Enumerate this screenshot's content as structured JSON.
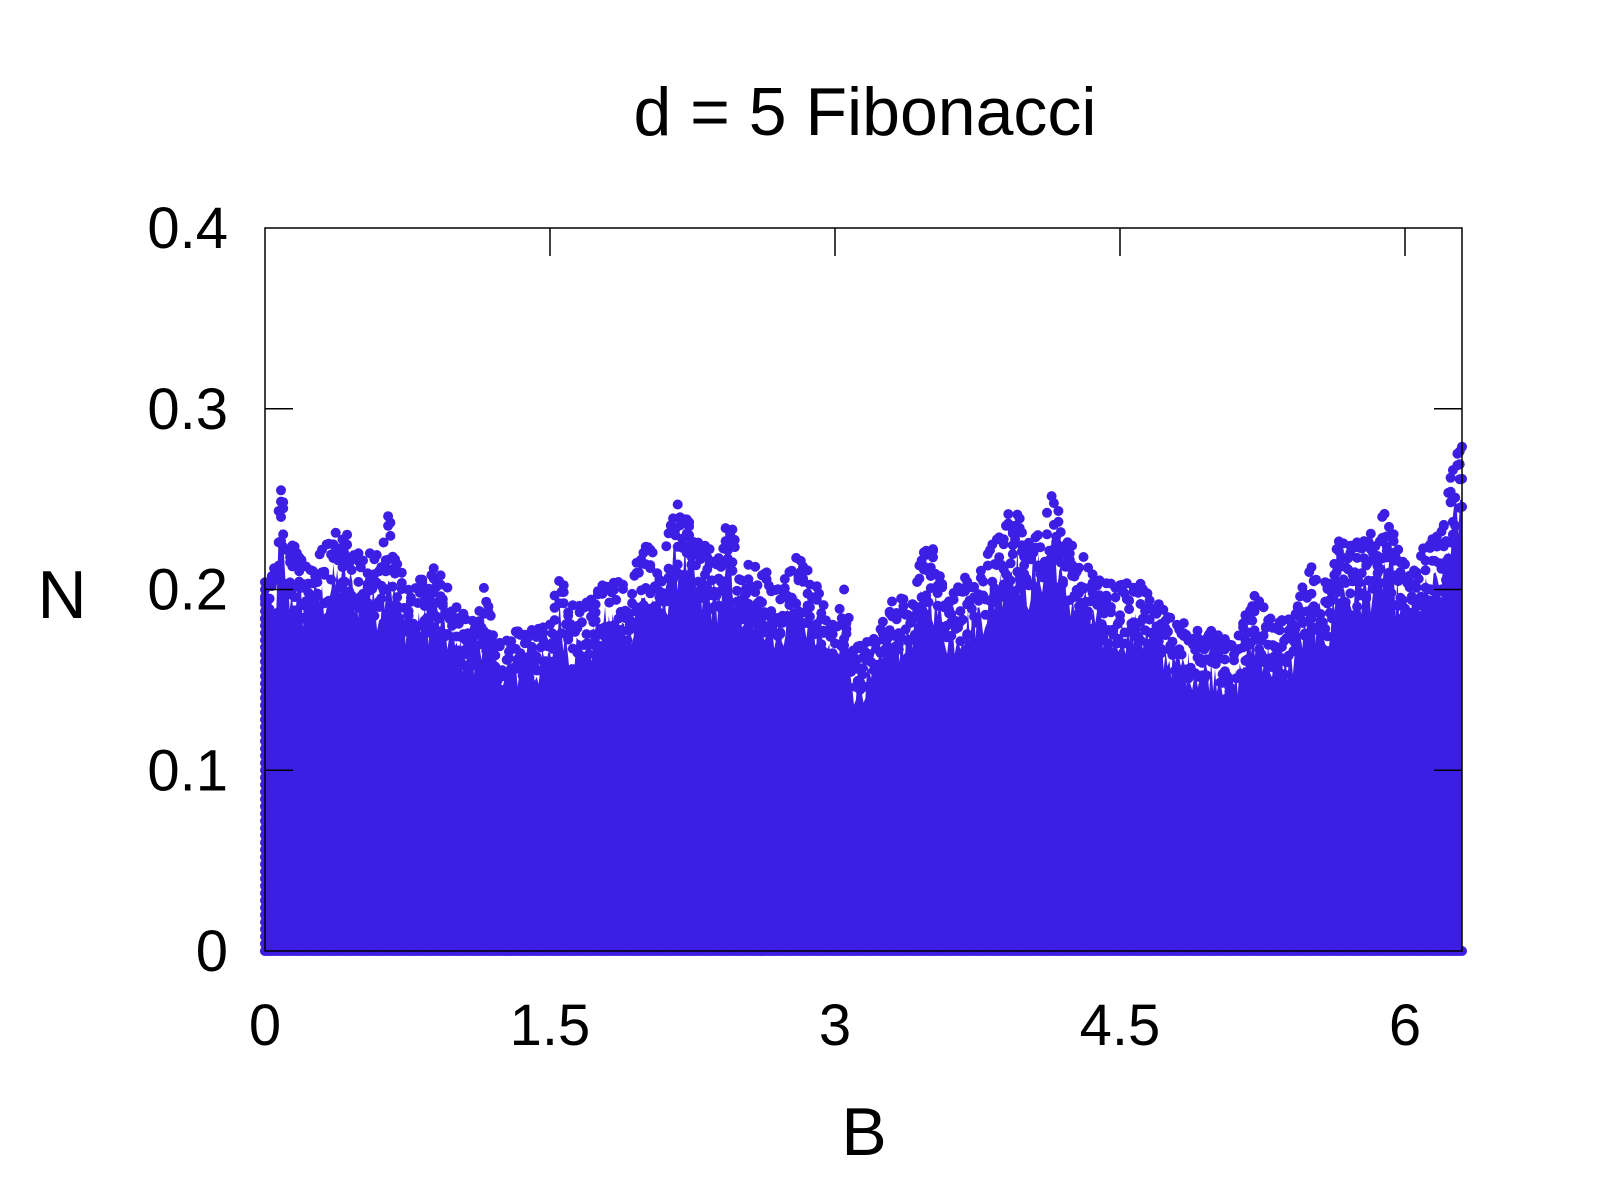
{
  "chart_data": {
    "type": "scatter",
    "title": "d = 5 Fibonacci",
    "xlabel": "B",
    "ylabel": "N",
    "xlim": [
      0,
      6.3
    ],
    "ylim": [
      0,
      0.4
    ],
    "x_ticks": [
      0,
      1.5,
      3,
      4.5,
      6
    ],
    "x_tick_labels": [
      "0",
      "1.5",
      "3",
      "4.5",
      "6"
    ],
    "y_ticks": [
      0,
      0.1,
      0.2,
      0.3,
      0.4
    ],
    "y_tick_labels": [
      "0",
      "0.1",
      "0.2",
      "0.3",
      "0.4"
    ],
    "grid": false,
    "legend": "none",
    "color": "#3d1ee4",
    "series": [
      {
        "envelope_x": [
          0,
          0.05,
          0.08,
          0.12,
          0.2,
          0.3,
          0.4,
          0.5,
          0.6,
          0.65,
          0.7,
          0.8,
          0.9,
          1.0,
          1.1,
          1.15,
          1.2,
          1.25,
          1.3,
          1.4,
          1.5,
          1.55,
          1.6,
          1.7,
          1.8,
          1.9,
          2.0,
          2.1,
          2.15,
          2.2,
          2.3,
          2.4,
          2.45,
          2.5,
          2.6,
          2.7,
          2.8,
          2.9,
          3.0,
          3.05,
          3.1,
          3.2,
          3.3,
          3.4,
          3.5,
          3.6,
          3.7,
          3.8,
          3.9,
          3.95,
          4.0,
          4.1,
          4.15,
          4.2,
          4.3,
          4.4,
          4.5,
          4.6,
          4.7,
          4.8,
          4.9,
          5.0,
          5.05,
          5.1,
          5.2,
          5.3,
          5.4,
          5.5,
          5.6,
          5.65,
          5.7,
          5.8,
          5.9,
          6.0,
          6.05,
          6.1,
          6.2,
          6.25,
          6.3
        ],
        "envelope_y": [
          0.205,
          0.21,
          0.258,
          0.225,
          0.215,
          0.22,
          0.235,
          0.22,
          0.215,
          0.24,
          0.21,
          0.2,
          0.21,
          0.19,
          0.18,
          0.2,
          0.18,
          0.165,
          0.175,
          0.175,
          0.18,
          0.21,
          0.19,
          0.19,
          0.205,
          0.2,
          0.22,
          0.215,
          0.24,
          0.245,
          0.22,
          0.22,
          0.24,
          0.21,
          0.21,
          0.2,
          0.215,
          0.2,
          0.175,
          0.2,
          0.165,
          0.17,
          0.19,
          0.2,
          0.225,
          0.195,
          0.205,
          0.215,
          0.235,
          0.245,
          0.225,
          0.24,
          0.255,
          0.225,
          0.215,
          0.2,
          0.2,
          0.2,
          0.19,
          0.18,
          0.175,
          0.175,
          0.17,
          0.165,
          0.195,
          0.18,
          0.18,
          0.21,
          0.2,
          0.23,
          0.22,
          0.225,
          0.24,
          0.21,
          0.215,
          0.22,
          0.23,
          0.265,
          0.275
        ]
      }
    ]
  }
}
